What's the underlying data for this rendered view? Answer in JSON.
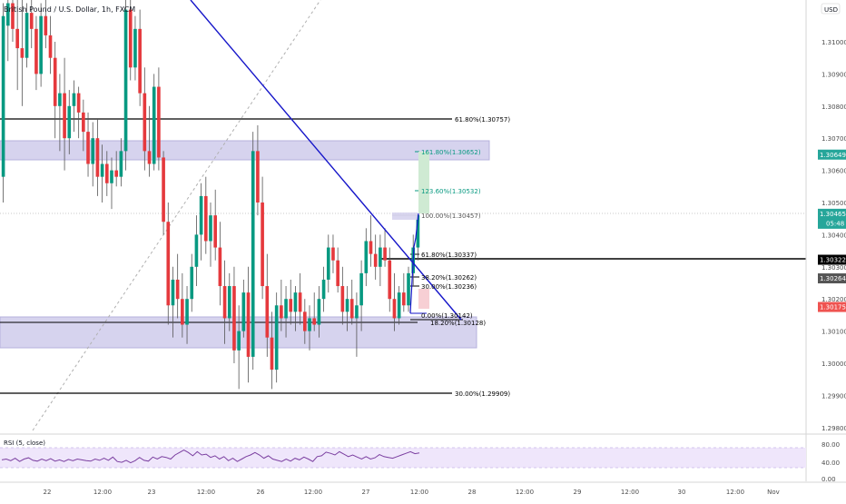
{
  "header": {
    "title": "British Pound / U.S. Dollar, 1h, FXCM"
  },
  "price_axis": {
    "currency": "USD",
    "ticks": [
      "1.31000",
      "1.30900",
      "1.30800",
      "1.30700",
      "1.30600",
      "1.30500",
      "1.30400",
      "1.30300",
      "1.30200",
      "1.30100",
      "1.30000",
      "1.29900",
      "1.29800"
    ],
    "badges": [
      {
        "price": 1.30649,
        "label": "1.30649",
        "color": "#26a69a"
      },
      {
        "price": 1.30465,
        "label": "1.30465",
        "sub": "05:48",
        "color": "#26a69a"
      },
      {
        "price": 1.30322,
        "label": "1.30322",
        "color": "#000000"
      },
      {
        "price": 1.30264,
        "label": "1.30264",
        "color": "#555555"
      },
      {
        "price": 1.30175,
        "label": "1.30175",
        "color": "#ef5350"
      }
    ]
  },
  "time_axis": {
    "labels": [
      "22",
      "12:00",
      "23",
      "12:00",
      "26",
      "12:00",
      "27",
      "12:00",
      "28",
      "12:00",
      "29",
      "12:00",
      "30",
      "12:00",
      "Nov"
    ]
  },
  "rsi": {
    "label": "RSI (5, close)",
    "ticks": [
      "80.00",
      "40.00",
      "0.00"
    ],
    "band": [
      30,
      70
    ],
    "values": [
      48,
      50,
      46,
      52,
      44,
      50,
      53,
      47,
      45,
      50,
      46,
      51,
      45,
      48,
      44,
      49,
      46,
      50,
      48,
      46,
      45,
      50,
      47,
      52,
      47,
      55,
      44,
      42,
      47,
      41,
      46,
      54,
      47,
      45,
      55,
      50,
      56,
      54,
      50,
      60,
      66,
      72,
      66,
      58,
      68,
      60,
      62,
      54,
      58,
      50,
      56,
      46,
      52,
      44,
      50,
      56,
      60,
      66,
      60,
      52,
      58,
      50,
      47,
      44,
      50,
      45,
      52,
      48,
      55,
      50,
      44,
      56,
      58,
      67,
      64,
      60,
      68,
      62,
      56,
      60,
      55,
      50,
      56,
      50,
      53,
      61,
      56,
      54,
      52,
      56,
      60,
      64,
      68,
      63,
      65
    ]
  },
  "fib_levels": [
    {
      "label": "61.80%(1.30757)",
      "price": 1.30757,
      "color": "#000000"
    },
    {
      "label": "30.00%(1.29909)",
      "price": 1.29909,
      "color": "#000000"
    },
    {
      "label": "161.80%(1.30652)",
      "price": 1.30652,
      "color": "#089981"
    },
    {
      "label": "123.60%(1.30532)",
      "price": 1.30532,
      "color": "#089981"
    },
    {
      "label": "100.00%(1.30457)",
      "price": 1.30457,
      "color": "#555555"
    },
    {
      "label": "61.80%(1.30337)",
      "price": 1.30337,
      "color": "#000000"
    },
    {
      "label": "38.20%(1.30262)",
      "price": 1.30262,
      "color": "#000000"
    },
    {
      "label": "30.00%(1.30236)",
      "price": 1.30236,
      "color": "#000000"
    },
    {
      "label": "0.00%(1.30142)",
      "price": 1.30142,
      "color": "#000000"
    },
    {
      "label": "18.20%(1.30128)",
      "price": 1.30128,
      "color": "#000000"
    }
  ],
  "colors": {
    "bull": "#089981",
    "bear": "#e5393d",
    "bull_main": "#2bb24c",
    "zone": "#d6d3ee",
    "trendline": "#1515c9",
    "fib_green": "#089981",
    "target": "#cfead3",
    "stop": "#f7cfd4"
  },
  "chart_data": {
    "type": "candlestick",
    "title": "British Pound / U.S. Dollar, 1h, FXCM",
    "ylim": [
      1.2978,
      1.3116
    ],
    "series": [
      {
        "name": "",
        "ohlc": [
          [
            1.3058,
            1.3112,
            1.305,
            1.3108
          ],
          [
            1.3105,
            1.3118,
            1.3094,
            1.3112
          ],
          [
            1.3112,
            1.3118,
            1.31,
            1.3104
          ],
          [
            1.3104,
            1.3116,
            1.3085,
            1.3098
          ],
          [
            1.3098,
            1.3115,
            1.308,
            1.3095
          ],
          [
            1.3095,
            1.3112,
            1.3092,
            1.3109
          ],
          [
            1.3109,
            1.3116,
            1.3098,
            1.3104
          ],
          [
            1.3104,
            1.3108,
            1.3085,
            1.309
          ],
          [
            1.309,
            1.3112,
            1.3086,
            1.3108
          ],
          [
            1.3108,
            1.3116,
            1.3098,
            1.3102
          ],
          [
            1.3102,
            1.3108,
            1.309,
            1.3095
          ],
          [
            1.3095,
            1.31,
            1.307,
            1.308
          ],
          [
            1.308,
            1.309,
            1.3066,
            1.3084
          ],
          [
            1.3084,
            1.3095,
            1.306,
            1.307
          ],
          [
            1.307,
            1.3085,
            1.3065,
            1.308
          ],
          [
            1.308,
            1.3088,
            1.3072,
            1.3084
          ],
          [
            1.3084,
            1.3086,
            1.307,
            1.3078
          ],
          [
            1.3078,
            1.3082,
            1.3066,
            1.3072
          ],
          [
            1.3072,
            1.3078,
            1.3058,
            1.3062
          ],
          [
            1.3062,
            1.3075,
            1.3055,
            1.307
          ],
          [
            1.307,
            1.3076,
            1.3052,
            1.3058
          ],
          [
            1.3058,
            1.3068,
            1.305,
            1.3062
          ],
          [
            1.3062,
            1.3066,
            1.3052,
            1.3056
          ],
          [
            1.3056,
            1.3064,
            1.3048,
            1.306
          ],
          [
            1.306,
            1.3066,
            1.3055,
            1.3058
          ],
          [
            1.3058,
            1.307,
            1.3055,
            1.3066
          ],
          [
            1.3066,
            1.3115,
            1.306,
            1.311
          ],
          [
            1.311,
            1.3116,
            1.3088,
            1.3092
          ],
          [
            1.3092,
            1.3108,
            1.3088,
            1.3104
          ],
          [
            1.3104,
            1.311,
            1.308,
            1.3084
          ],
          [
            1.3084,
            1.3092,
            1.306,
            1.3066
          ],
          [
            1.3066,
            1.308,
            1.3058,
            1.3062
          ],
          [
            1.3062,
            1.309,
            1.306,
            1.3086
          ],
          [
            1.3086,
            1.3092,
            1.306,
            1.3064
          ],
          [
            1.3064,
            1.3066,
            1.304,
            1.3044
          ],
          [
            1.3044,
            1.305,
            1.3012,
            1.3018
          ],
          [
            1.3018,
            1.303,
            1.3008,
            1.3026
          ],
          [
            1.3026,
            1.3034,
            1.3014,
            1.302
          ],
          [
            1.302,
            1.3028,
            1.3008,
            1.3012
          ],
          [
            1.3012,
            1.3024,
            1.3006,
            1.302
          ],
          [
            1.302,
            1.3034,
            1.3016,
            1.303
          ],
          [
            1.303,
            1.3046,
            1.3024,
            1.304
          ],
          [
            1.304,
            1.3056,
            1.3032,
            1.3052
          ],
          [
            1.3052,
            1.3058,
            1.3034,
            1.3038
          ],
          [
            1.3038,
            1.305,
            1.303,
            1.3046
          ],
          [
            1.3046,
            1.3054,
            1.3032,
            1.3036
          ],
          [
            1.3036,
            1.3044,
            1.3018,
            1.3024
          ],
          [
            1.3024,
            1.3032,
            1.3006,
            1.3014
          ],
          [
            1.3014,
            1.3028,
            1.301,
            1.3024
          ],
          [
            1.3024,
            1.303,
            1.3,
            1.3004
          ],
          [
            1.3004,
            1.3018,
            1.2992,
            1.301
          ],
          [
            1.301,
            1.3026,
            1.3008,
            1.3022
          ],
          [
            1.3022,
            1.303,
            1.2994,
            1.3002
          ],
          [
            1.3002,
            1.3072,
            1.2998,
            1.3066
          ],
          [
            1.3066,
            1.3074,
            1.3046,
            1.305
          ],
          [
            1.305,
            1.3058,
            1.302,
            1.3024
          ],
          [
            1.3024,
            1.3034,
            1.3002,
            1.3008
          ],
          [
            1.3008,
            1.3016,
            1.2992,
            1.2998
          ],
          [
            1.2998,
            1.3022,
            1.2994,
            1.3018
          ],
          [
            1.3018,
            1.3026,
            1.301,
            1.3014
          ],
          [
            1.3014,
            1.3024,
            1.3008,
            1.302
          ],
          [
            1.302,
            1.3026,
            1.3012,
            1.3016
          ],
          [
            1.3016,
            1.3024,
            1.301,
            1.3022
          ],
          [
            1.3022,
            1.3028,
            1.3012,
            1.3016
          ],
          [
            1.3016,
            1.302,
            1.3006,
            1.301
          ],
          [
            1.301,
            1.3018,
            1.3004,
            1.3014
          ],
          [
            1.3014,
            1.3022,
            1.301,
            1.3012
          ],
          [
            1.3012,
            1.3024,
            1.3008,
            1.302
          ],
          [
            1.302,
            1.303,
            1.3016,
            1.3026
          ],
          [
            1.3026,
            1.304,
            1.3022,
            1.3036
          ],
          [
            1.3036,
            1.304,
            1.3028,
            1.3032
          ],
          [
            1.3032,
            1.3036,
            1.3022,
            1.3024
          ],
          [
            1.3024,
            1.303,
            1.3012,
            1.3016
          ],
          [
            1.3016,
            1.3024,
            1.301,
            1.302
          ],
          [
            1.302,
            1.3026,
            1.3012,
            1.3014
          ],
          [
            1.3014,
            1.3022,
            1.3002,
            1.3018
          ],
          [
            1.3018,
            1.3032,
            1.301,
            1.3028
          ],
          [
            1.3028,
            1.3042,
            1.3024,
            1.3038
          ],
          [
            1.3038,
            1.3046,
            1.303,
            1.3034
          ],
          [
            1.3034,
            1.304,
            1.3026,
            1.303
          ],
          [
            1.303,
            1.304,
            1.3024,
            1.3036
          ],
          [
            1.3036,
            1.3042,
            1.303,
            1.3032
          ],
          [
            1.3032,
            1.3036,
            1.3016,
            1.302
          ],
          [
            1.302,
            1.3028,
            1.301,
            1.3014
          ],
          [
            1.3014,
            1.3024,
            1.3012,
            1.3022
          ],
          [
            1.3022,
            1.3028,
            1.3016,
            1.3018
          ],
          [
            1.3018,
            1.303,
            1.3016,
            1.3028
          ],
          [
            1.3028,
            1.304,
            1.3024,
            1.3036
          ],
          [
            1.3036,
            1.3046,
            1.3032,
            1.3046
          ]
        ]
      }
    ]
  }
}
